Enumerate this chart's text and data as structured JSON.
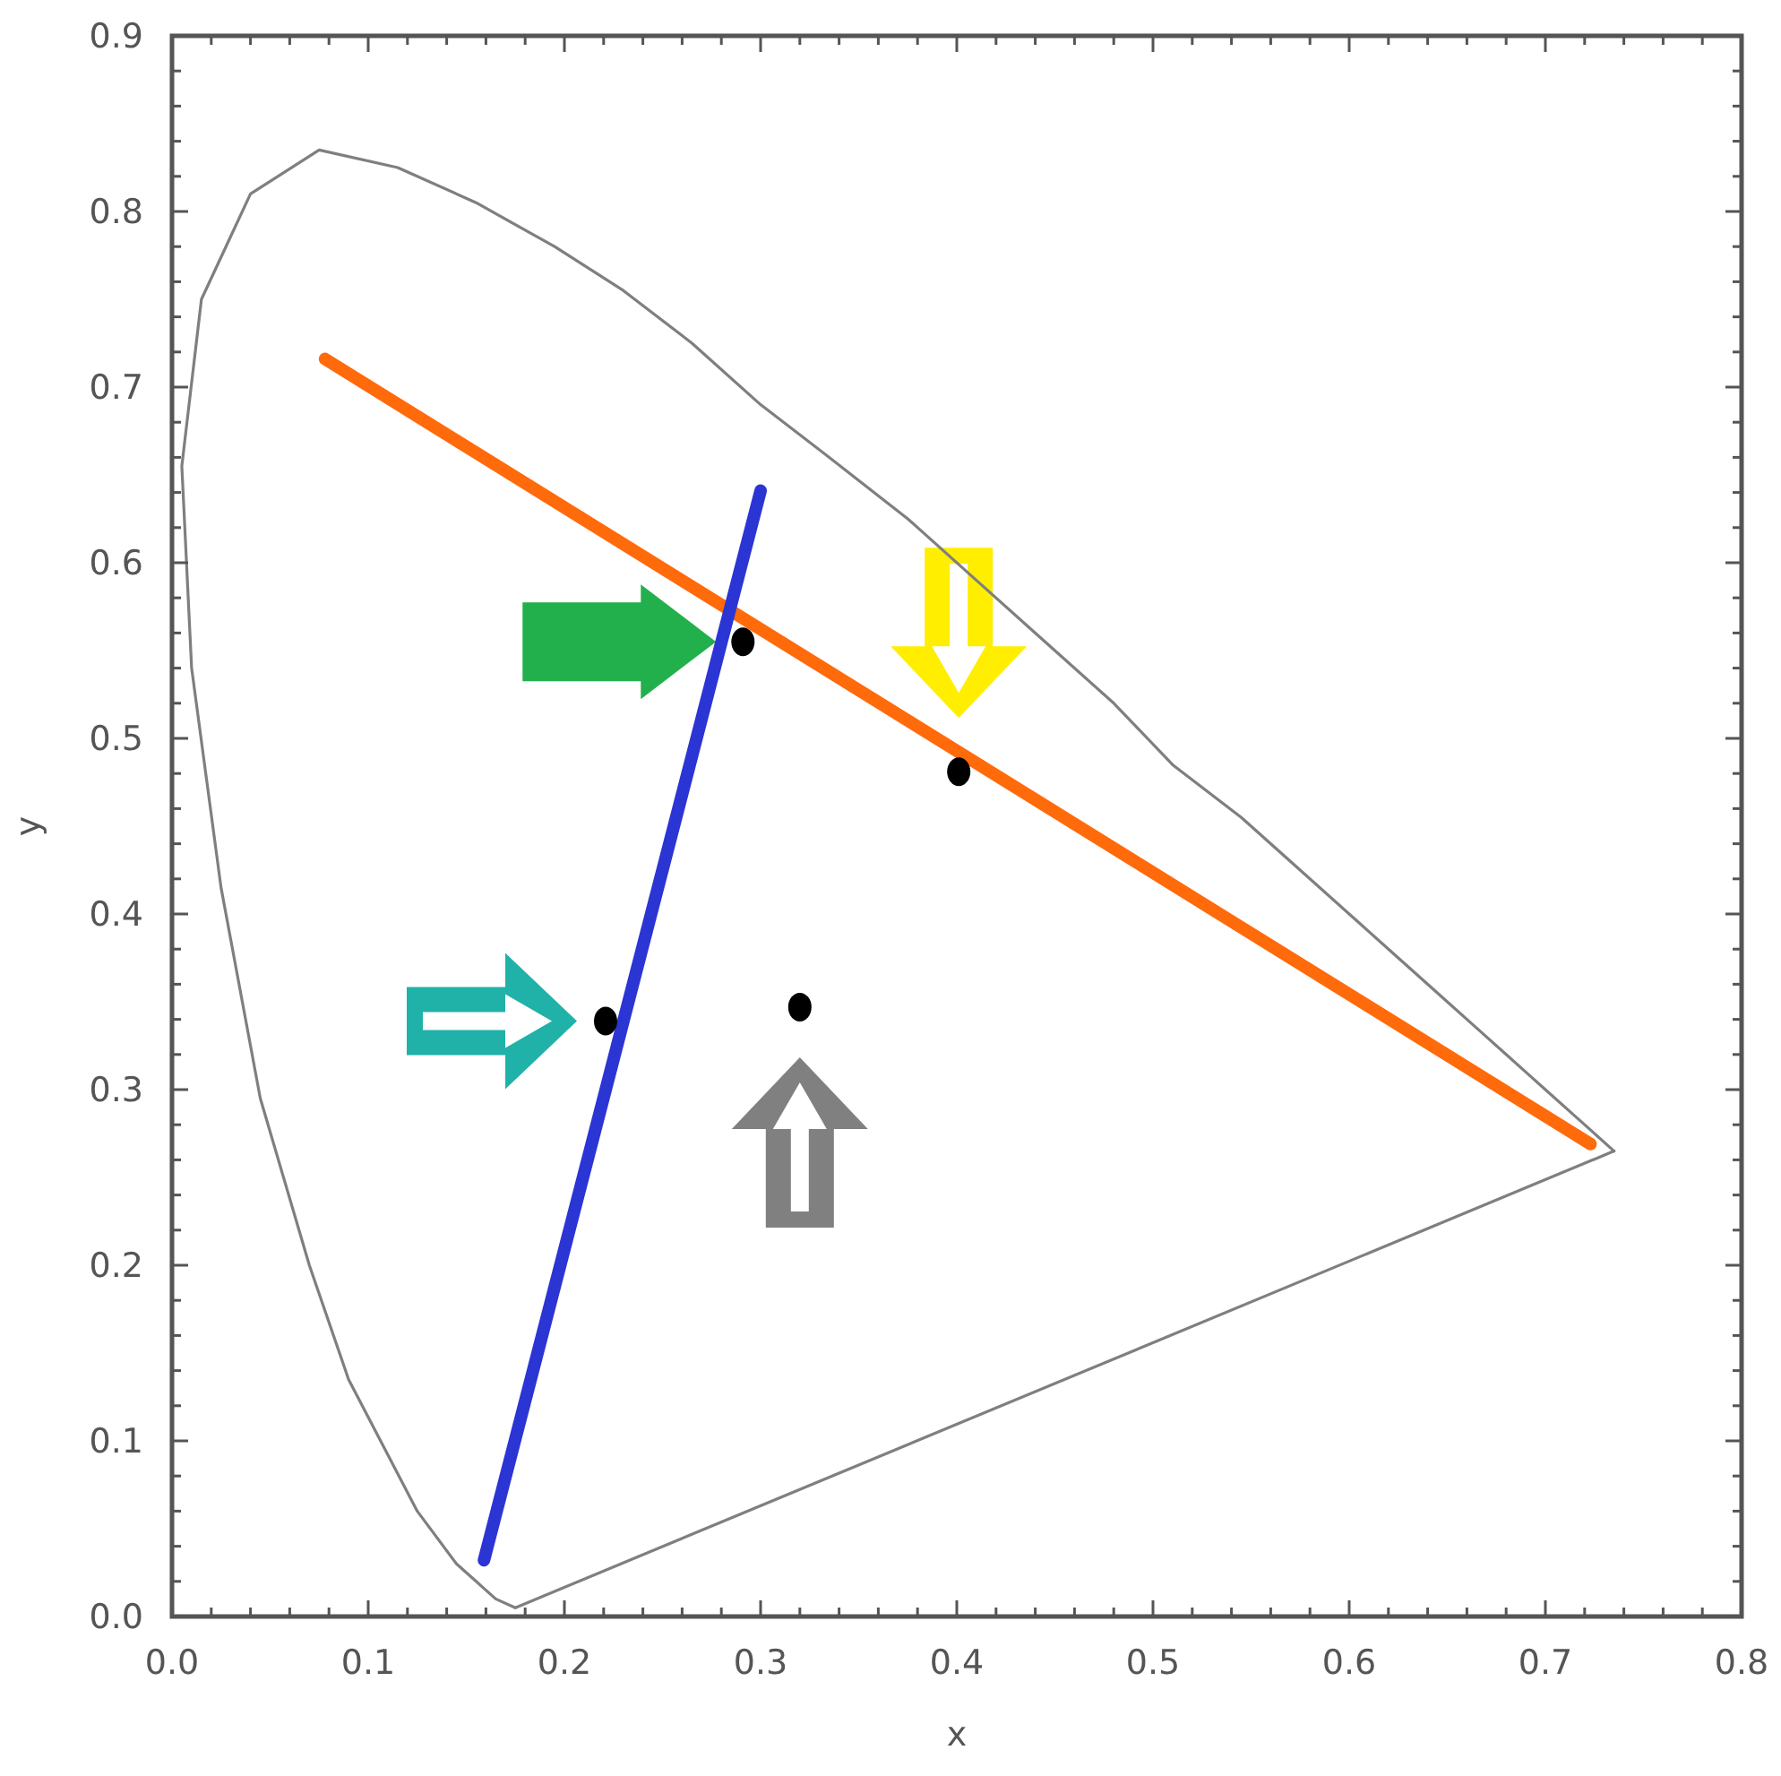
{
  "chart_data": {
    "type": "line",
    "xlabel": "x",
    "ylabel": "y",
    "xlim": [
      0,
      0.8
    ],
    "ylim": [
      0,
      0.9
    ],
    "xticks": [
      {
        "value": 0,
        "label": "0.0"
      },
      {
        "value": 0.02,
        "label": null
      },
      {
        "value": 0.04,
        "label": null
      },
      {
        "value": 0.06,
        "label": null
      },
      {
        "value": 0.08,
        "label": null
      },
      0.1,
      {
        "value": 0.12,
        "label": null
      },
      {
        "value": 0.14,
        "label": null
      },
      {
        "value": 0.16,
        "label": null
      },
      {
        "value": 0.18,
        "label": null
      },
      0.2,
      {
        "value": 0.22,
        "label": null
      },
      {
        "value": 0.24,
        "label": null
      },
      {
        "value": 0.26,
        "label": null
      },
      {
        "value": 0.28,
        "label": null
      },
      0.3,
      {
        "value": 0.32,
        "label": null
      },
      {
        "value": 0.34,
        "label": null
      },
      {
        "value": 0.36,
        "label": null
      },
      {
        "value": 0.38,
        "label": null
      },
      0.4,
      {
        "value": 0.42,
        "label": null
      },
      {
        "value": 0.44,
        "label": null
      },
      {
        "value": 0.46,
        "label": null
      },
      {
        "value": 0.48,
        "label": null
      },
      0.5,
      {
        "value": 0.52,
        "label": null
      },
      {
        "value": 0.54,
        "label": null
      },
      {
        "value": 0.56,
        "label": null
      },
      {
        "value": 0.58,
        "label": null
      },
      0.6,
      {
        "value": 0.62,
        "label": null
      },
      {
        "value": 0.64,
        "label": null
      },
      {
        "value": 0.66,
        "label": null
      },
      {
        "value": 0.68,
        "label": null
      },
      0.7,
      {
        "value": 0.72,
        "label": null
      },
      {
        "value": 0.74,
        "label": null
      },
      {
        "value": 0.76,
        "label": null
      },
      {
        "value": 0.78,
        "label": null
      },
      0.8
    ],
    "yticks": [
      {
        "value": 0,
        "label": "0.0"
      },
      {
        "value": 0.02,
        "label": null
      },
      {
        "value": 0.04,
        "label": null
      },
      {
        "value": 0.06,
        "label": null
      },
      {
        "value": 0.08,
        "label": null
      },
      0.1,
      {
        "value": 0.12,
        "label": null
      },
      {
        "value": 0.14,
        "label": null
      },
      {
        "value": 0.16,
        "label": null
      },
      {
        "value": 0.18,
        "label": null
      },
      0.2,
      {
        "value": 0.22,
        "label": null
      },
      {
        "value": 0.24,
        "label": null
      },
      {
        "value": 0.26,
        "label": null
      },
      {
        "value": 0.28,
        "label": null
      },
      0.3,
      {
        "value": 0.32,
        "label": null
      },
      {
        "value": 0.34,
        "label": null
      },
      {
        "value": 0.36,
        "label": null
      },
      {
        "value": 0.38,
        "label": null
      },
      0.4,
      {
        "value": 0.42,
        "label": null
      },
      {
        "value": 0.44,
        "label": null
      },
      {
        "value": 0.46,
        "label": null
      },
      {
        "value": 0.48,
        "label": null
      },
      0.5,
      {
        "value": 0.52,
        "label": null
      },
      {
        "value": 0.54,
        "label": null
      },
      {
        "value": 0.56,
        "label": null
      },
      {
        "value": 0.58,
        "label": null
      },
      0.6,
      {
        "value": 0.62,
        "label": null
      },
      {
        "value": 0.64,
        "label": null
      },
      {
        "value": 0.66,
        "label": null
      },
      {
        "value": 0.68,
        "label": null
      },
      0.7,
      {
        "value": 0.72,
        "label": null
      },
      {
        "value": 0.74,
        "label": null
      },
      {
        "value": 0.76,
        "label": null
      },
      {
        "value": 0.78,
        "label": null
      },
      0.8,
      {
        "value": 0.82,
        "label": null
      },
      {
        "value": 0.84,
        "label": null
      },
      {
        "value": 0.86,
        "label": null
      },
      {
        "value": 0.88,
        "label": null
      },
      0.9
    ],
    "grid": false,
    "series": [
      {
        "color": "#7f7f7f",
        "x": [
          0.175,
          0.165,
          0.16,
          0.155,
          0.145,
          0.125,
          0.09,
          0.07,
          0.045,
          0.025,
          0.01,
          0.005,
          0.015,
          0.04,
          0.075,
          0.115,
          0.155,
          0.195,
          0.23,
          0.265,
          0.3,
          0.335,
          0.375,
          0.41,
          0.445,
          0.48,
          0.51,
          0.545,
          0.575,
          0.605,
          0.625,
          0.65,
          0.665,
          0.68,
          0.69,
          0.7,
          0.715,
          0.735
        ],
        "values": [
          0.005,
          0.01,
          0.015,
          0.02,
          0.03,
          0.06,
          0.135,
          0.2,
          0.295,
          0.415,
          0.54,
          0.655,
          0.75,
          0.81,
          0.835,
          0.825,
          0.805,
          0.78,
          0.755,
          0.725,
          0.69,
          0.66,
          0.625,
          0.59,
          0.555,
          0.52,
          0.485,
          0.455,
          0.425,
          0.395,
          0.375,
          0.35,
          0.335,
          0.32,
          0.31,
          0.3,
          0.285,
          0.265
        ]
      },
      {
        "color": "#7f7f7f",
        "x": [
          0.175,
          0.735
        ],
        "values": [
          0.005,
          0.265
        ]
      },
      {
        "color": "#ff6a0a",
        "x": [
          0.078,
          0.723
        ],
        "values": [
          0.716,
          0.269
        ]
      },
      {
        "color": "#2b35d4",
        "x": [
          0.159,
          0.3
        ],
        "values": [
          0.032,
          0.641
        ]
      },
      {
        "type": "scatter",
        "color": "#000000",
        "marker": "circle",
        "x": [
          0.291,
          0.401,
          0.221,
          0.32
        ],
        "values": [
          0.555,
          0.481,
          0.339,
          0.347
        ]
      }
    ]
  }
}
